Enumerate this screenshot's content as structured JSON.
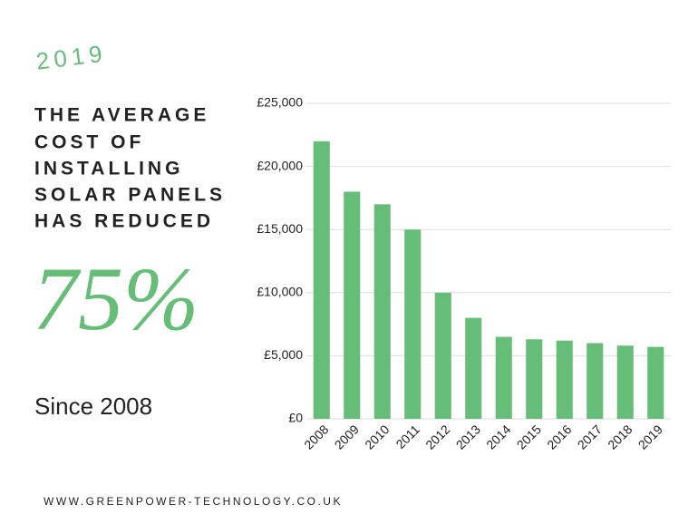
{
  "chart_data": {
    "type": "bar",
    "categories": [
      "2008",
      "2009",
      "2010",
      "2011",
      "2012",
      "2013",
      "2014",
      "2015",
      "2016",
      "2017",
      "2018",
      "2019"
    ],
    "values": [
      22000,
      18000,
      17000,
      15000,
      10000,
      8000,
      6500,
      6300,
      6200,
      6000,
      5800,
      5700
    ],
    "color": "#66bd78",
    "ylim": [
      0,
      25000
    ],
    "yticks": [
      {
        "value": 0,
        "label": "£0"
      },
      {
        "value": 5000,
        "label": "£5,000"
      },
      {
        "value": 10000,
        "label": "£10,000"
      },
      {
        "value": 15000,
        "label": "£15,000"
      },
      {
        "value": 20000,
        "label": "£20,000"
      },
      {
        "value": 25000,
        "label": "£25,000"
      }
    ],
    "grid": true
  },
  "text": {
    "year": "2019",
    "headline": [
      "THE AVERAGE",
      "COST OF",
      "INSTALLING",
      "SOLAR PANELS",
      "HAS REDUCED"
    ],
    "stat": "75%",
    "since": "Since 2008",
    "website": "WWW.GREENPOWER-TECHNOLOGY.CO.UK"
  }
}
